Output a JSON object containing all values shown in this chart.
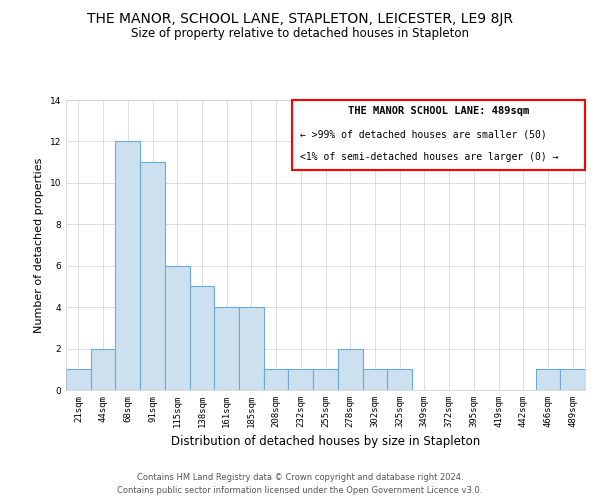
{
  "title": "THE MANOR, SCHOOL LANE, STAPLETON, LEICESTER, LE9 8JR",
  "subtitle": "Size of property relative to detached houses in Stapleton",
  "xlabel": "Distribution of detached houses by size in Stapleton",
  "ylabel": "Number of detached properties",
  "bar_labels": [
    "21sqm",
    "44sqm",
    "68sqm",
    "91sqm",
    "115sqm",
    "138sqm",
    "161sqm",
    "185sqm",
    "208sqm",
    "232sqm",
    "255sqm",
    "278sqm",
    "302sqm",
    "325sqm",
    "349sqm",
    "372sqm",
    "395sqm",
    "419sqm",
    "442sqm",
    "466sqm",
    "489sqm"
  ],
  "bar_values": [
    1,
    2,
    12,
    11,
    6,
    5,
    4,
    4,
    1,
    1,
    1,
    2,
    1,
    1,
    0,
    0,
    0,
    0,
    0,
    1,
    1
  ],
  "bar_color": "#cce0f0",
  "bar_edge_color": "#6aaad4",
  "ylim": [
    0,
    14
  ],
  "yticks": [
    0,
    2,
    4,
    6,
    8,
    10,
    12,
    14
  ],
  "legend_title": "THE MANOR SCHOOL LANE: 489sqm",
  "legend_line1": "← >99% of detached houses are smaller (50)",
  "legend_line2": "<1% of semi-detached houses are larger (0) →",
  "footer_line1": "Contains HM Land Registry data © Crown copyright and database right 2024.",
  "footer_line2": "Contains public sector information licensed under the Open Government Licence v3.0.",
  "title_fontsize": 10,
  "subtitle_fontsize": 8.5,
  "xlabel_fontsize": 8.5,
  "ylabel_fontsize": 8,
  "tick_fontsize": 6.5,
  "footer_fontsize": 6,
  "legend_fontsize": 7.5
}
